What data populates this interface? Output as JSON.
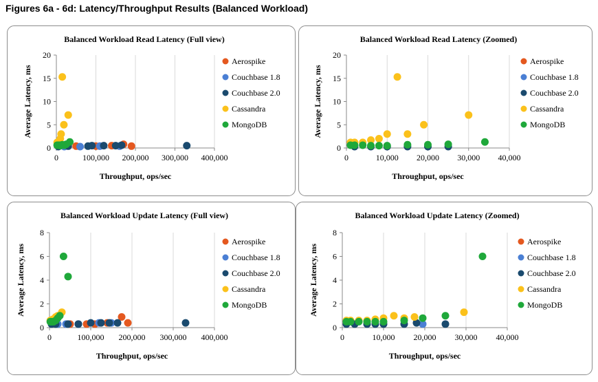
{
  "figure_title": "Figures 6a - 6d: Latency/Throughput Results (Balanced Workload)",
  "colors": {
    "Aerospike": "#e4581f",
    "Couchbase 1.8": "#4a7fd4",
    "Couchbase 2.0": "#1a4a6e",
    "Cassandra": "#fbc11b",
    "MongoDB": "#1fa83a"
  },
  "chart_data": [
    {
      "type": "scatter",
      "title": "Balanced Workload Read Latency (Full view)",
      "xlabel": "Throughput, ops/sec",
      "ylabel": "Average Latency, ms",
      "xlim": [
        0,
        400000
      ],
      "ylim": [
        0,
        20
      ],
      "xticks": [
        0,
        100000,
        200000,
        300000,
        400000
      ],
      "xtick_labels": [
        "0",
        "100,000",
        "200,000",
        "300,000",
        "400,000"
      ],
      "yticks": [
        0,
        5,
        10,
        15,
        20
      ],
      "ytick_labels": [
        "0",
        "5",
        "10",
        "15",
        "20"
      ],
      "legend_position": "right",
      "series": [
        {
          "name": "Aerospike",
          "x": [
            50000,
            100000,
            140000,
            170000,
            190000
          ],
          "y": [
            0.4,
            0.4,
            0.5,
            0.8,
            0.4
          ]
        },
        {
          "name": "Couchbase 1.8",
          "x": [
            20000,
            60000,
            110000,
            160000
          ],
          "y": [
            0.3,
            0.3,
            0.4,
            0.4
          ]
        },
        {
          "name": "Couchbase 2.0",
          "x": [
            5000,
            30000,
            80000,
            90000,
            120000,
            150000,
            165000,
            330000
          ],
          "y": [
            0.3,
            0.4,
            0.4,
            0.5,
            0.5,
            0.5,
            0.6,
            0.5
          ]
        },
        {
          "name": "Cassandra",
          "x": [
            2000,
            4000,
            6000,
            10000,
            12000,
            15000,
            19000,
            30000
          ],
          "y": [
            1.2,
            1.2,
            1.4,
            2,
            3,
            15.3,
            5,
            7.1
          ]
        },
        {
          "name": "MongoDB",
          "x": [
            2000,
            4000,
            6000,
            8000,
            10000,
            15000,
            20000,
            25000,
            34000
          ],
          "y": [
            0.6,
            0.6,
            0.6,
            0.6,
            0.5,
            0.7,
            0.6,
            0.8,
            1.3
          ]
        }
      ]
    },
    {
      "type": "scatter",
      "title": "Balanced Workload Read Latency (Zoomed)",
      "xlabel": "Throughput, ops/sec",
      "ylabel": "Average Latency, ms",
      "xlim": [
        0,
        40000
      ],
      "ylim": [
        0,
        20
      ],
      "xticks": [
        0,
        10000,
        20000,
        30000,
        40000
      ],
      "xtick_labels": [
        "0",
        "10,000",
        "20,000",
        "30,000",
        "40,000"
      ],
      "yticks": [
        0,
        5,
        10,
        15,
        20
      ],
      "ytick_labels": [
        "0",
        "5",
        "10",
        "15",
        "20"
      ],
      "legend_position": "right",
      "series": [
        {
          "name": "Aerospike",
          "x": [],
          "y": []
        },
        {
          "name": "Couchbase 1.8",
          "x": [],
          "y": []
        },
        {
          "name": "Couchbase 2.0",
          "x": [
            2000,
            6000,
            10000,
            15000,
            20000,
            25000
          ],
          "y": [
            0.3,
            0.3,
            0.3,
            0.3,
            0.3,
            0.3
          ]
        },
        {
          "name": "Cassandra",
          "x": [
            1000,
            2000,
            4000,
            6000,
            8000,
            10000,
            12500,
            15000,
            19000,
            30000
          ],
          "y": [
            1.2,
            1.2,
            1.2,
            1.7,
            2,
            3,
            15.3,
            3,
            5,
            7.1
          ]
        },
        {
          "name": "MongoDB",
          "x": [
            1000,
            2000,
            4000,
            6000,
            8000,
            10000,
            15000,
            20000,
            25000,
            34000
          ],
          "y": [
            0.6,
            0.6,
            0.6,
            0.5,
            0.5,
            0.5,
            0.7,
            0.7,
            0.8,
            1.3
          ]
        }
      ]
    },
    {
      "type": "scatter",
      "title": "Balanced Workload Update Latency (Full view)",
      "xlabel": "Throughput, ops/sec",
      "ylabel": "Average Latency, ms",
      "xlim": [
        0,
        400000
      ],
      "ylim": [
        0,
        8
      ],
      "xticks": [
        0,
        100000,
        200000,
        300000,
        400000
      ],
      "xtick_labels": [
        "0",
        "100,000",
        "200,000",
        "300,000",
        "400,000"
      ],
      "yticks": [
        0,
        2,
        4,
        6,
        8
      ],
      "ytick_labels": [
        "0",
        "2",
        "4",
        "6",
        "8"
      ],
      "legend_position": "right",
      "series": [
        {
          "name": "Aerospike",
          "x": [
            50000,
            90000,
            110000,
            140000,
            175000,
            190000
          ],
          "y": [
            0.3,
            0.3,
            0.3,
            0.4,
            0.9,
            0.4
          ]
        },
        {
          "name": "Couchbase 1.8",
          "x": [
            20000,
            40000,
            70000,
            120000,
            150000
          ],
          "y": [
            0.3,
            0.3,
            0.3,
            0.4,
            0.4
          ]
        },
        {
          "name": "Couchbase 2.0",
          "x": [
            5000,
            15000,
            45000,
            70000,
            100000,
            125000,
            145000,
            165000,
            330000
          ],
          "y": [
            0.3,
            0.3,
            0.3,
            0.3,
            0.4,
            0.4,
            0.4,
            0.4,
            0.4
          ]
        },
        {
          "name": "Cassandra",
          "x": [
            2000,
            4000,
            6000,
            8000,
            10000,
            15000,
            20000,
            30000
          ],
          "y": [
            0.6,
            0.6,
            0.6,
            0.7,
            0.7,
            0.9,
            1,
            1.3
          ]
        },
        {
          "name": "MongoDB",
          "x": [
            2000,
            4000,
            6000,
            10000,
            15000,
            20000,
            25000,
            34000,
            45000
          ],
          "y": [
            0.5,
            0.5,
            0.5,
            0.5,
            0.6,
            0.8,
            1,
            6,
            4.3
          ]
        }
      ]
    },
    {
      "type": "scatter",
      "title": "Balanced Workload Update Latency (Zoomed)",
      "xlabel": "Throughput, ops/sec",
      "ylabel": "Average Latency, ms",
      "xlim": [
        0,
        40000
      ],
      "ylim": [
        0,
        8
      ],
      "xticks": [
        0,
        10000,
        20000,
        30000,
        40000
      ],
      "xtick_labels": [
        "0",
        "10,000",
        "20,000",
        "30,000",
        "40,000"
      ],
      "yticks": [
        0,
        2,
        4,
        6,
        8
      ],
      "ytick_labels": [
        "0",
        "2",
        "4",
        "6",
        "8"
      ],
      "legend_position": "right",
      "series": [
        {
          "name": "Aerospike",
          "x": [],
          "y": []
        },
        {
          "name": "Couchbase 1.8",
          "x": [
            19500
          ],
          "y": [
            0.3
          ]
        },
        {
          "name": "Couchbase 2.0",
          "x": [
            1000,
            3000,
            6000,
            8000,
            10000,
            15000,
            18000,
            25000
          ],
          "y": [
            0.3,
            0.3,
            0.3,
            0.3,
            0.3,
            0.3,
            0.4,
            0.3
          ]
        },
        {
          "name": "Cassandra",
          "x": [
            1000,
            2000,
            4000,
            6000,
            8000,
            10000,
            12500,
            15000,
            17500,
            29500
          ],
          "y": [
            0.6,
            0.6,
            0.6,
            0.6,
            0.7,
            0.8,
            1,
            0.8,
            0.9,
            1.3
          ]
        },
        {
          "name": "MongoDB",
          "x": [
            1000,
            2000,
            4000,
            6000,
            8000,
            10000,
            15000,
            19500,
            25000,
            34000
          ],
          "y": [
            0.5,
            0.5,
            0.5,
            0.5,
            0.5,
            0.5,
            0.6,
            0.8,
            1,
            6
          ]
        }
      ]
    }
  ]
}
